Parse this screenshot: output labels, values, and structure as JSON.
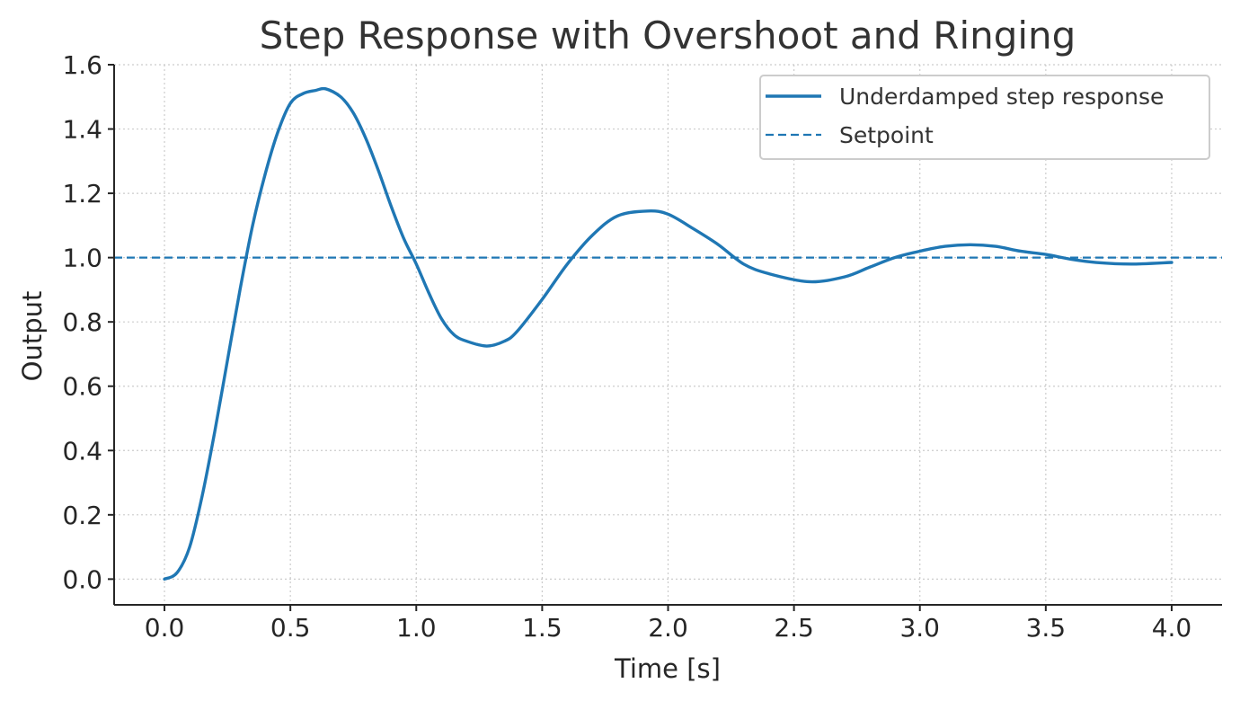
{
  "chart_data": {
    "type": "line",
    "title": "Step Response with Overshoot and Ringing",
    "xlabel": "Time [s]",
    "ylabel": "Output",
    "xlim": [
      -0.2,
      4.2
    ],
    "ylim": [
      -0.08,
      1.6
    ],
    "xticks": [
      0.0,
      0.5,
      1.0,
      1.5,
      2.0,
      2.5,
      3.0,
      3.5,
      4.0
    ],
    "xtick_labels": [
      "0.0",
      "0.5",
      "1.0",
      "1.5",
      "2.0",
      "2.5",
      "3.0",
      "3.5",
      "4.0"
    ],
    "yticks": [
      0.0,
      0.2,
      0.4,
      0.6,
      0.8,
      1.0,
      1.2,
      1.4,
      1.6
    ],
    "ytick_labels": [
      "0.0",
      "0.2",
      "0.4",
      "0.6",
      "0.8",
      "1.0",
      "1.2",
      "1.4",
      "1.6"
    ],
    "grid": true,
    "legend_position": "top-right",
    "series": [
      {
        "name": "Underdamped step response",
        "style": "solid",
        "color": "#1f77b4",
        "x": [
          0.0,
          0.05,
          0.1,
          0.15,
          0.2,
          0.25,
          0.3,
          0.35,
          0.4,
          0.45,
          0.5,
          0.55,
          0.6,
          0.64,
          0.7,
          0.75,
          0.8,
          0.85,
          0.9,
          0.95,
          1.0,
          1.05,
          1.1,
          1.15,
          1.2,
          1.28,
          1.35,
          1.4,
          1.5,
          1.6,
          1.7,
          1.8,
          1.92,
          2.0,
          2.1,
          2.2,
          2.3,
          2.4,
          2.56,
          2.7,
          2.8,
          2.9,
          3.0,
          3.1,
          3.2,
          3.3,
          3.4,
          3.5,
          3.6,
          3.7,
          3.84,
          4.0
        ],
        "y": [
          0.0,
          0.02,
          0.1,
          0.26,
          0.46,
          0.68,
          0.9,
          1.1,
          1.26,
          1.39,
          1.48,
          1.51,
          1.52,
          1.525,
          1.5,
          1.45,
          1.37,
          1.27,
          1.16,
          1.06,
          0.98,
          0.89,
          0.81,
          0.76,
          0.74,
          0.725,
          0.74,
          0.77,
          0.87,
          0.98,
          1.07,
          1.13,
          1.145,
          1.135,
          1.09,
          1.04,
          0.98,
          0.95,
          0.925,
          0.94,
          0.97,
          1.0,
          1.02,
          1.035,
          1.04,
          1.035,
          1.02,
          1.01,
          0.995,
          0.985,
          0.98,
          0.985
        ]
      },
      {
        "name": "Setpoint",
        "style": "dashed",
        "color": "#1f77b4",
        "x": [
          -0.2,
          4.2
        ],
        "y": [
          1.0,
          1.0
        ]
      }
    ]
  }
}
